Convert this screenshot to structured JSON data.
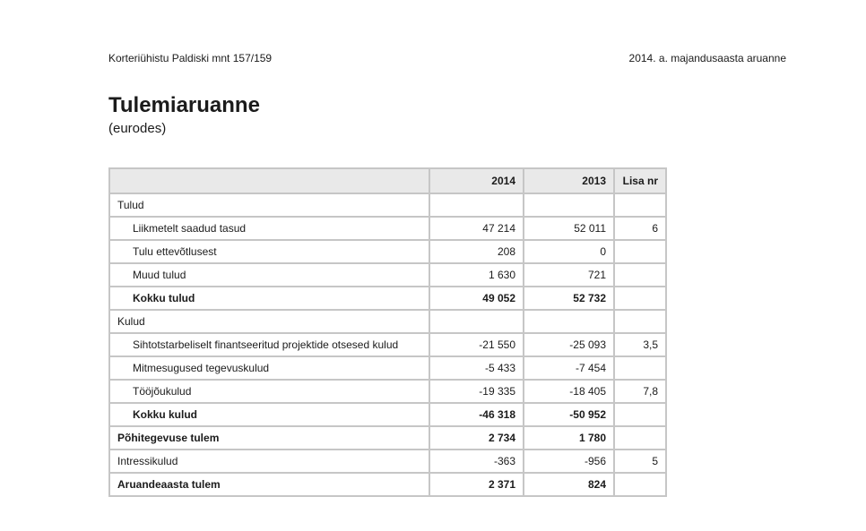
{
  "doc_header": {
    "left": "Korteriühistu Paldiski mnt 157/159",
    "right": "2014. a. majandusaasta aruanne"
  },
  "title": "Tulemiaruanne",
  "subtitle": "(eurodes)",
  "colors": {
    "header_bg": "#e9e9e9",
    "border": "#c6c6c6",
    "text": "#1b1b1b",
    "page_bg": "#ffffff"
  },
  "table": {
    "columns": [
      "",
      "2014",
      "2013",
      "Lisa nr"
    ],
    "rows": [
      {
        "label": "Tulud",
        "v2014": "",
        "v2013": "",
        "lisa": "",
        "indent": false,
        "bold": false
      },
      {
        "label": "Liikmetelt saadud tasud",
        "v2014": "47 214",
        "v2013": "52 011",
        "lisa": "6",
        "indent": true,
        "bold": false
      },
      {
        "label": "Tulu ettevõtlusest",
        "v2014": "208",
        "v2013": "0",
        "lisa": "",
        "indent": true,
        "bold": false
      },
      {
        "label": "Muud tulud",
        "v2014": "1 630",
        "v2013": "721",
        "lisa": "",
        "indent": true,
        "bold": false
      },
      {
        "label": "Kokku tulud",
        "v2014": "49 052",
        "v2013": "52 732",
        "lisa": "",
        "indent": true,
        "bold": true
      },
      {
        "label": "Kulud",
        "v2014": "",
        "v2013": "",
        "lisa": "",
        "indent": false,
        "bold": false
      },
      {
        "label": "Sihtotstarbeliselt finantseeritud projektide otsesed kulud",
        "v2014": "-21 550",
        "v2013": "-25 093",
        "lisa": "3,5",
        "indent": true,
        "bold": false
      },
      {
        "label": "Mitmesugused tegevuskulud",
        "v2014": "-5 433",
        "v2013": "-7 454",
        "lisa": "",
        "indent": true,
        "bold": false
      },
      {
        "label": "Tööjõukulud",
        "v2014": "-19 335",
        "v2013": "-18 405",
        "lisa": "7,8",
        "indent": true,
        "bold": false
      },
      {
        "label": "Kokku kulud",
        "v2014": "-46 318",
        "v2013": "-50 952",
        "lisa": "",
        "indent": true,
        "bold": true
      },
      {
        "label": "Põhitegevuse tulem",
        "v2014": "2 734",
        "v2013": "1 780",
        "lisa": "",
        "indent": false,
        "bold": true
      },
      {
        "label": "Intressikulud",
        "v2014": "-363",
        "v2013": "-956",
        "lisa": "5",
        "indent": false,
        "bold": false
      },
      {
        "label": "Aruandeaasta tulem",
        "v2014": "2 371",
        "v2013": "824",
        "lisa": "",
        "indent": false,
        "bold": true
      }
    ]
  }
}
